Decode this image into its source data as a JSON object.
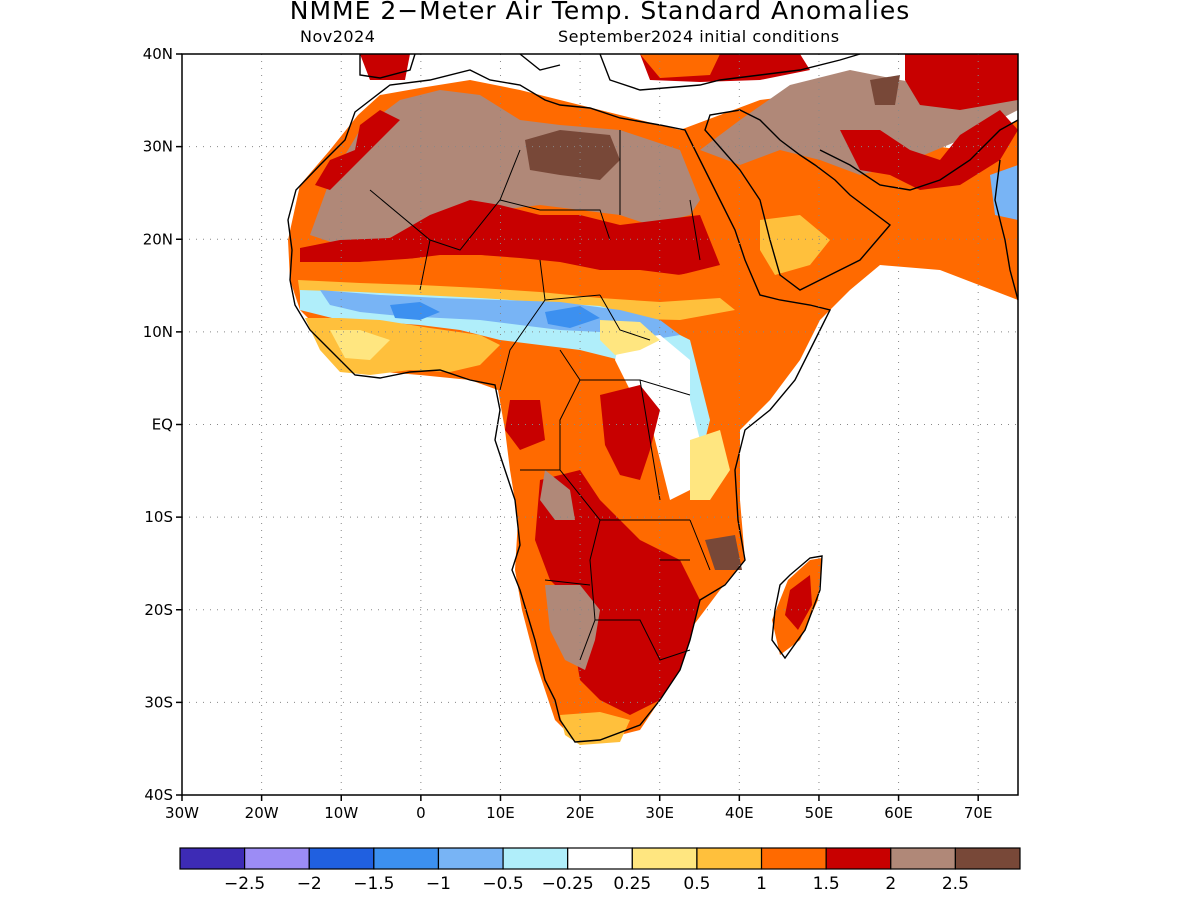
{
  "header": {
    "title": "NMME 2−Meter Air Temp. Standard Anomalies",
    "target_month": "Nov2024",
    "initial_conditions": "September2024 initial conditions"
  },
  "map": {
    "region": "Africa",
    "lon_range": [
      -30,
      75
    ],
    "lat_range": [
      -40,
      40
    ],
    "lat_ticks": [
      {
        "value": 40,
        "label": "40N"
      },
      {
        "value": 30,
        "label": "30N"
      },
      {
        "value": 20,
        "label": "20N"
      },
      {
        "value": 10,
        "label": "10N"
      },
      {
        "value": 0,
        "label": "EQ"
      },
      {
        "value": -10,
        "label": "10S"
      },
      {
        "value": -20,
        "label": "20S"
      },
      {
        "value": -30,
        "label": "30S"
      },
      {
        "value": -40,
        "label": "40S"
      }
    ],
    "lon_ticks": [
      {
        "value": -30,
        "label": "30W"
      },
      {
        "value": -20,
        "label": "20W"
      },
      {
        "value": -10,
        "label": "10W"
      },
      {
        "value": 0,
        "label": "0"
      },
      {
        "value": 10,
        "label": "10E"
      },
      {
        "value": 20,
        "label": "20E"
      },
      {
        "value": 30,
        "label": "30E"
      },
      {
        "value": 40,
        "label": "40E"
      },
      {
        "value": 50,
        "label": "50E"
      },
      {
        "value": 60,
        "label": "60E"
      },
      {
        "value": 70,
        "label": "70E"
      }
    ],
    "grid": "dotted"
  },
  "colorbar": {
    "colors": [
      "#3d2bb5",
      "#9c8cf5",
      "#2060e0",
      "#3c90f0",
      "#78b4f5",
      "#b0eefa",
      "#ffffff",
      "#ffe680",
      "#ffc03c",
      "#ff6a00",
      "#c80000",
      "#b08878",
      "#784838"
    ],
    "labels": [
      "−2.5",
      "−2",
      "−1.5",
      "−1",
      "−0.5",
      "−0.25",
      "0.25",
      "0.5",
      "1",
      "1.5",
      "2",
      "2.5"
    ]
  }
}
